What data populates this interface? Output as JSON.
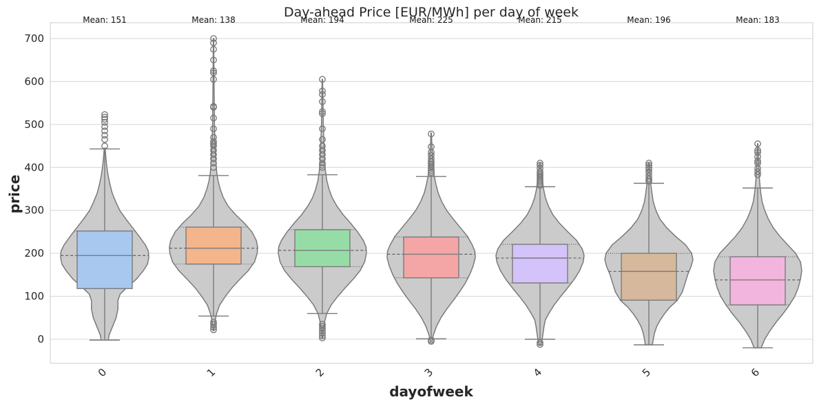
{
  "chart_data": {
    "type": "violin",
    "title": "Day-ahead Price [EUR/MWh] per day of week",
    "xlabel": "dayofweek",
    "ylabel": "price",
    "ylim": [
      -55,
      735
    ],
    "yticks": [
      0,
      100,
      200,
      300,
      400,
      500,
      600,
      700
    ],
    "grid": true,
    "violin_color": "#cbcbcb",
    "categories": [
      "0",
      "1",
      "2",
      "3",
      "4",
      "5",
      "6"
    ],
    "box_colors": [
      "#a8c8f0",
      "#f4b48c",
      "#96dca6",
      "#f4a6a6",
      "#d4c2fa",
      "#d6b89c",
      "#f2b6de"
    ],
    "mean_labels": [
      "Mean: 151",
      "Mean: 138",
      "Mean: 194",
      "Mean: 225",
      "Mean: 215",
      "Mean: 196",
      "Mean: 183"
    ],
    "series": [
      {
        "q1": 118,
        "median": 195,
        "q3": 252,
        "whisker_low": -2,
        "whisker_high": 443,
        "violin_min": -2,
        "violin_max": 445,
        "outliers": [
          450,
          465,
          475,
          485,
          495,
          505,
          512,
          517,
          523
        ],
        "density": [
          [
            -2,
            0.08
          ],
          [
            10,
            0.1
          ],
          [
            30,
            0.18
          ],
          [
            50,
            0.26
          ],
          [
            70,
            0.3
          ],
          [
            90,
            0.3
          ],
          [
            105,
            0.35
          ],
          [
            120,
            0.5
          ],
          [
            140,
            0.72
          ],
          [
            160,
            0.88
          ],
          [
            175,
            0.97
          ],
          [
            190,
            1.0
          ],
          [
            205,
            0.99
          ],
          [
            220,
            0.92
          ],
          [
            240,
            0.78
          ],
          [
            260,
            0.63
          ],
          [
            280,
            0.48
          ],
          [
            300,
            0.34
          ],
          [
            320,
            0.25
          ],
          [
            340,
            0.17
          ],
          [
            360,
            0.12
          ],
          [
            380,
            0.08
          ],
          [
            400,
            0.05
          ],
          [
            420,
            0.03
          ],
          [
            445,
            0.01
          ]
        ]
      },
      {
        "q1": 175,
        "median": 212,
        "q3": 261,
        "whisker_low": 54,
        "whisker_high": 381,
        "violin_min": 20,
        "violin_max": 700,
        "outliers": [
          22,
          28,
          35,
          40,
          400,
          410,
          420,
          430,
          440,
          450,
          455,
          460,
          470,
          490,
          515,
          540,
          542,
          605,
          620,
          625,
          650,
          675,
          690,
          700
        ],
        "density": [
          [
            20,
            0.01
          ],
          [
            40,
            0.03
          ],
          [
            60,
            0.07
          ],
          [
            80,
            0.14
          ],
          [
            100,
            0.27
          ],
          [
            120,
            0.42
          ],
          [
            140,
            0.6
          ],
          [
            160,
            0.79
          ],
          [
            180,
            0.93
          ],
          [
            200,
            0.99
          ],
          [
            215,
            1.0
          ],
          [
            230,
            0.97
          ],
          [
            250,
            0.87
          ],
          [
            270,
            0.7
          ],
          [
            290,
            0.5
          ],
          [
            310,
            0.33
          ],
          [
            330,
            0.22
          ],
          [
            350,
            0.15
          ],
          [
            370,
            0.1
          ],
          [
            390,
            0.07
          ],
          [
            420,
            0.05
          ],
          [
            460,
            0.03
          ],
          [
            500,
            0.02
          ],
          [
            560,
            0.015
          ],
          [
            620,
            0.01
          ],
          [
            700,
            0.005
          ]
        ]
      },
      {
        "q1": 169,
        "median": 207,
        "q3": 255,
        "whisker_low": 60,
        "whisker_high": 383,
        "violin_min": 2,
        "violin_max": 605,
        "outliers": [
          3,
          8,
          14,
          20,
          25,
          30,
          35,
          400,
          405,
          410,
          420,
          430,
          440,
          450,
          465,
          490,
          525,
          530,
          553,
          570,
          578,
          605
        ],
        "density": [
          [
            2,
            0.01
          ],
          [
            20,
            0.02
          ],
          [
            40,
            0.05
          ],
          [
            60,
            0.1
          ],
          [
            80,
            0.2
          ],
          [
            100,
            0.35
          ],
          [
            120,
            0.52
          ],
          [
            140,
            0.7
          ],
          [
            160,
            0.86
          ],
          [
            180,
            0.96
          ],
          [
            200,
            1.0
          ],
          [
            215,
            0.99
          ],
          [
            230,
            0.93
          ],
          [
            250,
            0.8
          ],
          [
            270,
            0.64
          ],
          [
            290,
            0.47
          ],
          [
            310,
            0.33
          ],
          [
            330,
            0.22
          ],
          [
            350,
            0.15
          ],
          [
            370,
            0.1
          ],
          [
            400,
            0.06
          ],
          [
            440,
            0.04
          ],
          [
            500,
            0.02
          ],
          [
            560,
            0.012
          ],
          [
            605,
            0.005
          ]
        ]
      },
      {
        "q1": 143,
        "median": 198,
        "q3": 238,
        "whisker_low": 1,
        "whisker_high": 379,
        "violin_min": -5,
        "violin_max": 480,
        "outliers": [
          -5,
          -2,
          388,
          393,
          398,
          403,
          408,
          413,
          420,
          428,
          435,
          448,
          478
        ],
        "density": [
          [
            -5,
            0.02
          ],
          [
            10,
            0.05
          ],
          [
            30,
            0.12
          ],
          [
            50,
            0.22
          ],
          [
            70,
            0.35
          ],
          [
            90,
            0.5
          ],
          [
            110,
            0.64
          ],
          [
            130,
            0.77
          ],
          [
            150,
            0.87
          ],
          [
            170,
            0.95
          ],
          [
            190,
            1.0
          ],
          [
            205,
            0.99
          ],
          [
            220,
            0.93
          ],
          [
            240,
            0.82
          ],
          [
            260,
            0.66
          ],
          [
            280,
            0.5
          ],
          [
            300,
            0.35
          ],
          [
            320,
            0.24
          ],
          [
            340,
            0.16
          ],
          [
            360,
            0.11
          ],
          [
            380,
            0.07
          ],
          [
            410,
            0.04
          ],
          [
            440,
            0.02
          ],
          [
            480,
            0.005
          ]
        ]
      },
      {
        "q1": 131,
        "median": 189,
        "q3": 221,
        "whisker_low": 0,
        "whisker_high": 355,
        "violin_min": -12,
        "violin_max": 410,
        "outliers": [
          -12,
          -8,
          358,
          362,
          366,
          370,
          375,
          380,
          385,
          390,
          398,
          405,
          410
        ],
        "density": [
          [
            -12,
            0.02
          ],
          [
            0,
            0.05
          ],
          [
            15,
            0.07
          ],
          [
            30,
            0.09
          ],
          [
            45,
            0.12
          ],
          [
            60,
            0.2
          ],
          [
            80,
            0.32
          ],
          [
            100,
            0.47
          ],
          [
            120,
            0.63
          ],
          [
            140,
            0.78
          ],
          [
            160,
            0.9
          ],
          [
            180,
            0.98
          ],
          [
            195,
            1.0
          ],
          [
            210,
            0.96
          ],
          [
            230,
            0.83
          ],
          [
            250,
            0.63
          ],
          [
            270,
            0.44
          ],
          [
            290,
            0.29
          ],
          [
            310,
            0.19
          ],
          [
            330,
            0.12
          ],
          [
            350,
            0.08
          ],
          [
            380,
            0.04
          ],
          [
            410,
            0.01
          ]
        ]
      },
      {
        "q1": 91,
        "median": 158,
        "q3": 200,
        "whisker_low": -13,
        "whisker_high": 363,
        "violin_min": -13,
        "violin_max": 410,
        "outliers": [
          368,
          373,
          380,
          388,
          395,
          400,
          405,
          410
        ],
        "density": [
          [
            -13,
            0.08
          ],
          [
            0,
            0.1
          ],
          [
            15,
            0.13
          ],
          [
            30,
            0.18
          ],
          [
            45,
            0.26
          ],
          [
            60,
            0.36
          ],
          [
            75,
            0.48
          ],
          [
            90,
            0.64
          ],
          [
            110,
            0.76
          ],
          [
            130,
            0.82
          ],
          [
            150,
            0.88
          ],
          [
            170,
            0.96
          ],
          [
            185,
            1.0
          ],
          [
            200,
            0.97
          ],
          [
            220,
            0.83
          ],
          [
            240,
            0.6
          ],
          [
            260,
            0.4
          ],
          [
            280,
            0.25
          ],
          [
            300,
            0.16
          ],
          [
            320,
            0.1
          ],
          [
            340,
            0.07
          ],
          [
            360,
            0.045
          ],
          [
            380,
            0.03
          ],
          [
            410,
            0.01
          ]
        ]
      },
      {
        "q1": 80,
        "median": 138,
        "q3": 192,
        "whisker_low": -20,
        "whisker_high": 352,
        "violin_min": -20,
        "violin_max": 455,
        "outliers": [
          383,
          390,
          398,
          410,
          415,
          425,
          435,
          440,
          455
        ],
        "density": [
          [
            -20,
            0.08
          ],
          [
            0,
            0.16
          ],
          [
            20,
            0.28
          ],
          [
            40,
            0.42
          ],
          [
            60,
            0.58
          ],
          [
            80,
            0.72
          ],
          [
            100,
            0.84
          ],
          [
            120,
            0.92
          ],
          [
            140,
            0.97
          ],
          [
            160,
            1.0
          ],
          [
            180,
            0.97
          ],
          [
            200,
            0.86
          ],
          [
            220,
            0.68
          ],
          [
            240,
            0.5
          ],
          [
            260,
            0.35
          ],
          [
            280,
            0.24
          ],
          [
            300,
            0.16
          ],
          [
            320,
            0.1
          ],
          [
            340,
            0.07
          ],
          [
            360,
            0.05
          ],
          [
            380,
            0.035
          ],
          [
            400,
            0.025
          ],
          [
            430,
            0.015
          ],
          [
            455,
            0.005
          ]
        ]
      }
    ]
  }
}
